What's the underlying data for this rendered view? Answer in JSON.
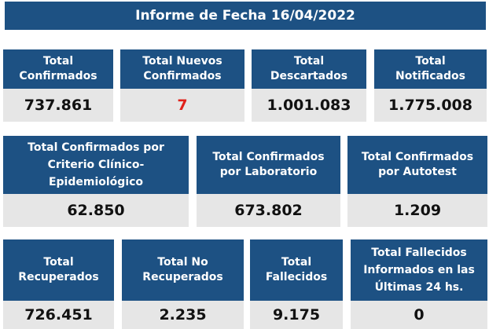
{
  "header": {
    "title": "Informe de Fecha 16/04/2022"
  },
  "colors": {
    "header_bg": "#1d5183",
    "value_bg": "#e6e6e6",
    "highlight": "#e0221b"
  },
  "row1": [
    {
      "label": "Total Confirmados",
      "value": "737.861"
    },
    {
      "label": "Total Nuevos Confirmados",
      "value": "7"
    },
    {
      "label": "Total Descartados",
      "value": "1.001.083"
    },
    {
      "label": "Total Notificados",
      "value": "1.775.008"
    }
  ],
  "row2": [
    {
      "label": "Total Confirmados por Criterio Clínico-Epidemiológico",
      "value": "62.850"
    },
    {
      "label": "Total Confirmados por Laboratorio",
      "value": "673.802"
    },
    {
      "label": "Total Confirmados por Autotest",
      "value": "1.209"
    }
  ],
  "row3": [
    {
      "label": "Total Recuperados",
      "value": "726.451"
    },
    {
      "label": "Total No Recuperados",
      "value": "2.235"
    },
    {
      "label": "Total Fallecidos",
      "value": "9.175"
    },
    {
      "label": "Total Fallecidos Informados en las Últimas 24 hs.",
      "value": "0"
    }
  ]
}
